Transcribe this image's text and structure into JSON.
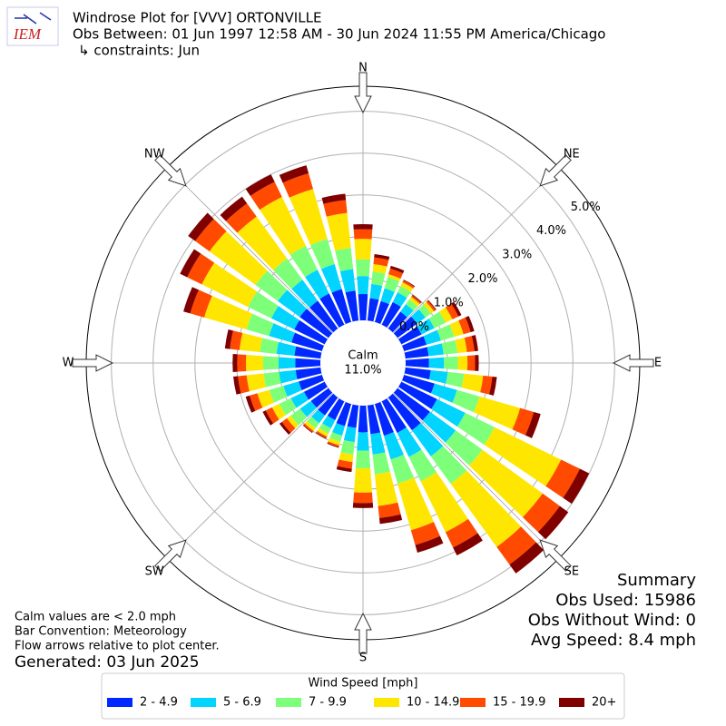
{
  "chart_data": {
    "type": "windrose",
    "logo": "IEM",
    "title": "Windrose Plot for [VVV] ORTONVILLE",
    "subtitle": "Obs Between: 01 Jun 1997 12:58 AM - 30 Jun 2024 11:55 PM America/Chicago",
    "constraints": "↳ constraints: Jun",
    "direction_labels": [
      "N",
      "NE",
      "E",
      "SE",
      "S",
      "SW",
      "W",
      "NW"
    ],
    "calm": {
      "label": "Calm",
      "value": 11.0,
      "value_label": "11.0%"
    },
    "rlim": [
      0,
      5.6
    ],
    "rticks": [
      {
        "value": 0,
        "label": "0.0%"
      },
      {
        "value": 1,
        "label": "1.0%"
      },
      {
        "value": 2,
        "label": "2.0%"
      },
      {
        "value": 3,
        "label": "3.0%"
      },
      {
        "value": 4,
        "label": "4.0%"
      },
      {
        "value": 5,
        "label": "5.0%"
      }
    ],
    "grid": true,
    "x": [
      0,
      10,
      20,
      30,
      40,
      50,
      60,
      70,
      80,
      90,
      100,
      110,
      120,
      130,
      140,
      150,
      160,
      170,
      180,
      190,
      200,
      210,
      220,
      230,
      240,
      250,
      260,
      270,
      280,
      290,
      300,
      310,
      320,
      330,
      340,
      350
    ],
    "legend_title": "Wind Speed [mph]",
    "series": [
      {
        "name": "2 - 4.9",
        "color": "#0028ff",
        "values": [
          0.63,
          0.54,
          0.52,
          0.6,
          0.5,
          0.58,
          0.54,
          0.56,
          0.56,
          0.56,
          0.61,
          0.76,
          0.95,
          0.96,
          0.97,
          0.84,
          0.79,
          0.69,
          0.64,
          0.54,
          0.55,
          0.5,
          0.53,
          0.52,
          0.55,
          0.58,
          0.6,
          0.6,
          0.63,
          0.76,
          0.81,
          0.85,
          0.82,
          0.83,
          0.82,
          0.72
        ]
      },
      {
        "name": "5 - 6.9",
        "color": "#00d4ff",
        "values": [
          0.43,
          0.34,
          0.32,
          0.26,
          0.22,
          0.25,
          0.34,
          0.36,
          0.36,
          0.36,
          0.41,
          0.56,
          0.75,
          0.76,
          0.77,
          0.64,
          0.59,
          0.49,
          0.44,
          0.34,
          0.24,
          0.22,
          0.23,
          0.32,
          0.35,
          0.38,
          0.4,
          0.4,
          0.43,
          0.56,
          0.61,
          0.65,
          0.62,
          0.63,
          0.62,
          0.52
        ]
      },
      {
        "name": "7 - 9.9",
        "color": "#7dff7a",
        "values": [
          0.4,
          0.3,
          0.28,
          0.17,
          0.14,
          0.16,
          0.3,
          0.33,
          0.33,
          0.33,
          0.39,
          0.56,
          0.78,
          0.79,
          0.81,
          0.65,
          0.6,
          0.48,
          0.42,
          0.3,
          0.15,
          0.14,
          0.15,
          0.28,
          0.31,
          0.35,
          0.37,
          0.37,
          0.4,
          0.56,
          0.62,
          0.66,
          0.63,
          0.64,
          0.63,
          0.51
        ]
      },
      {
        "name": "10 - 14.9",
        "color": "#ffe600",
        "values": [
          0.49,
          0.18,
          0.07,
          0.1,
          0.08,
          0.09,
          0.18,
          0.23,
          0.23,
          0.23,
          0.46,
          1.01,
          1.77,
          1.78,
          1.87,
          1.35,
          1.16,
          0.76,
          0.58,
          0.18,
          0.09,
          0.08,
          0.08,
          0.11,
          0.19,
          0.3,
          0.41,
          0.41,
          0.49,
          1.05,
          1.23,
          1.36,
          1.24,
          1.3,
          1.24,
          0.84
        ]
      },
      {
        "name": "15 - 19.9",
        "color": "#ff4a00",
        "values": [
          0.23,
          0.16,
          0.14,
          0.05,
          0.04,
          0.05,
          0.16,
          0.18,
          0.18,
          0.18,
          0.22,
          0.34,
          0.5,
          0.51,
          0.52,
          0.41,
          0.37,
          0.29,
          0.25,
          0.16,
          0.04,
          0.04,
          0.04,
          0.15,
          0.17,
          0.19,
          0.21,
          0.21,
          0.23,
          0.35,
          0.39,
          0.42,
          0.39,
          0.4,
          0.39,
          0.31
        ]
      },
      {
        "name": "20+",
        "color": "#800000",
        "values": [
          0.12,
          0.08,
          0.07,
          0.02,
          0.02,
          0.02,
          0.08,
          0.09,
          0.09,
          0.09,
          0.11,
          0.17,
          0.25,
          0.25,
          0.26,
          0.21,
          0.19,
          0.14,
          0.12,
          0.08,
          0.02,
          0.02,
          0.02,
          0.07,
          0.08,
          0.1,
          0.11,
          0.11,
          0.12,
          0.17,
          0.19,
          0.21,
          0.2,
          0.2,
          0.2,
          0.15
        ]
      }
    ],
    "notes": [
      "Calm values are < 2.0 mph",
      "Bar Convention: Meteorology",
      "Flow arrows relative to plot center."
    ],
    "generated": "Generated: 03 Jun 2025",
    "summary": [
      "Summary",
      "Obs Used: 15986",
      "Obs Without Wind: 0",
      "Avg Speed: 8.4 mph"
    ]
  }
}
